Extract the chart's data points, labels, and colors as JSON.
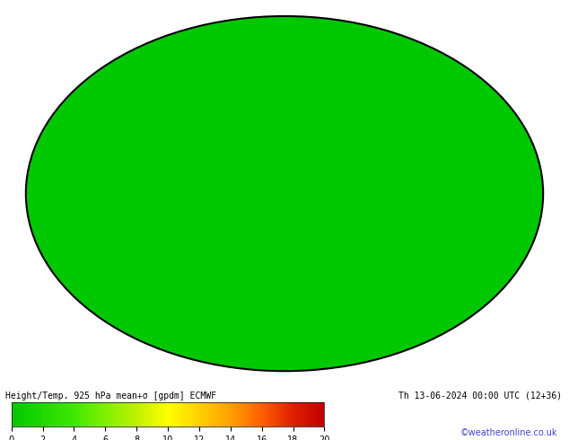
{
  "title_left": "Height/Temp. 925 hPa mean+σ [gpdm] ECMWF",
  "title_right": "Th 13-06-2024 00:00 UTC (12+36)",
  "credit": "©weatheronline.co.uk",
  "colorbar_ticks": [
    0,
    2,
    4,
    6,
    8,
    10,
    12,
    14,
    16,
    18,
    20
  ],
  "colorbar_colors": [
    "#00c800",
    "#20d800",
    "#40e800",
    "#80f000",
    "#c0f000",
    "#ffff00",
    "#ffd000",
    "#ffa000",
    "#ff6000",
    "#e02000",
    "#c00000"
  ],
  "map_bg_color": "#00c800",
  "ocean_color": "#00c800",
  "land_color": "#aaaaaa",
  "contour_color": "#000000",
  "label_bg": "#ffffff",
  "figsize": [
    6.34,
    4.9
  ],
  "dpi": 100
}
